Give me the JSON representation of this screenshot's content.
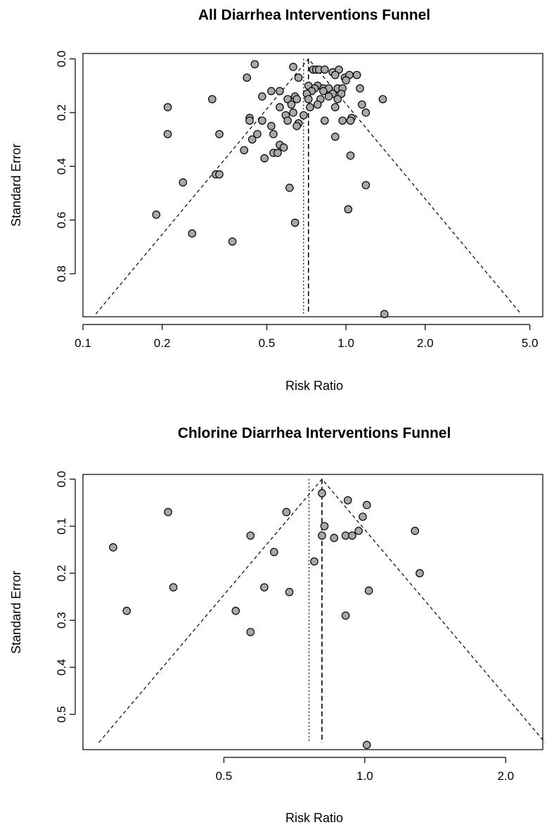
{
  "chart_data": [
    {
      "type": "scatter",
      "title": "All Diarrhea Interventions Funnel",
      "xlabel": "Risk Ratio",
      "ylabel": "Standard Error",
      "xscale": "log",
      "xlim": [
        0.1,
        5.6
      ],
      "ylim": [
        0.96,
        -0.02
      ],
      "xticks": [
        0.1,
        0.2,
        0.5,
        1.0,
        2.0,
        5.0
      ],
      "xtick_labels": [
        "0.1",
        "0.2",
        "0.5",
        "1.0",
        "2.0",
        "5.0"
      ],
      "yticks": [
        0.0,
        0.2,
        0.4,
        0.6,
        0.8
      ],
      "ytick_labels": [
        "0.0",
        "0.2",
        "0.4",
        "0.6",
        "0.8"
      ],
      "pooled_estimate": 0.72,
      "reference_line": 0.69,
      "funnel_se_max": 0.95,
      "grid": false,
      "legend": "none",
      "points": [
        {
          "x": 0.45,
          "y": 0.02
        },
        {
          "x": 0.63,
          "y": 0.03
        },
        {
          "x": 0.75,
          "y": 0.04
        },
        {
          "x": 0.77,
          "y": 0.04
        },
        {
          "x": 0.79,
          "y": 0.04
        },
        {
          "x": 0.83,
          "y": 0.04
        },
        {
          "x": 0.89,
          "y": 0.05
        },
        {
          "x": 0.94,
          "y": 0.04
        },
        {
          "x": 0.91,
          "y": 0.06
        },
        {
          "x": 0.99,
          "y": 0.07
        },
        {
          "x": 1.03,
          "y": 0.06
        },
        {
          "x": 1.1,
          "y": 0.06
        },
        {
          "x": 0.42,
          "y": 0.07
        },
        {
          "x": 0.66,
          "y": 0.07
        },
        {
          "x": 1.0,
          "y": 0.08
        },
        {
          "x": 0.72,
          "y": 0.1
        },
        {
          "x": 0.78,
          "y": 0.1
        },
        {
          "x": 0.76,
          "y": 0.11
        },
        {
          "x": 0.82,
          "y": 0.11
        },
        {
          "x": 0.86,
          "y": 0.11
        },
        {
          "x": 0.93,
          "y": 0.11
        },
        {
          "x": 0.97,
          "y": 0.11
        },
        {
          "x": 1.13,
          "y": 0.11
        },
        {
          "x": 0.52,
          "y": 0.12
        },
        {
          "x": 0.56,
          "y": 0.12
        },
        {
          "x": 0.74,
          "y": 0.12
        },
        {
          "x": 0.82,
          "y": 0.12
        },
        {
          "x": 0.71,
          "y": 0.13
        },
        {
          "x": 0.89,
          "y": 0.13
        },
        {
          "x": 0.96,
          "y": 0.13
        },
        {
          "x": 0.64,
          "y": 0.14
        },
        {
          "x": 0.48,
          "y": 0.14
        },
        {
          "x": 0.86,
          "y": 0.14
        },
        {
          "x": 0.31,
          "y": 0.15
        },
        {
          "x": 0.6,
          "y": 0.15
        },
        {
          "x": 0.65,
          "y": 0.15
        },
        {
          "x": 0.72,
          "y": 0.15
        },
        {
          "x": 0.8,
          "y": 0.15
        },
        {
          "x": 0.93,
          "y": 0.15
        },
        {
          "x": 1.38,
          "y": 0.15
        },
        {
          "x": 0.62,
          "y": 0.17
        },
        {
          "x": 0.78,
          "y": 0.17
        },
        {
          "x": 0.21,
          "y": 0.18
        },
        {
          "x": 0.56,
          "y": 0.18
        },
        {
          "x": 0.73,
          "y": 0.18
        },
        {
          "x": 0.91,
          "y": 0.18
        },
        {
          "x": 1.15,
          "y": 0.17
        },
        {
          "x": 1.19,
          "y": 0.2
        },
        {
          "x": 0.63,
          "y": 0.2
        },
        {
          "x": 0.59,
          "y": 0.21
        },
        {
          "x": 0.69,
          "y": 0.21
        },
        {
          "x": 0.43,
          "y": 0.22
        },
        {
          "x": 1.05,
          "y": 0.22
        },
        {
          "x": 0.43,
          "y": 0.23
        },
        {
          "x": 0.48,
          "y": 0.23
        },
        {
          "x": 0.6,
          "y": 0.23
        },
        {
          "x": 0.83,
          "y": 0.23
        },
        {
          "x": 0.97,
          "y": 0.23
        },
        {
          "x": 1.04,
          "y": 0.23
        },
        {
          "x": 0.66,
          "y": 0.24
        },
        {
          "x": 0.52,
          "y": 0.25
        },
        {
          "x": 0.65,
          "y": 0.25
        },
        {
          "x": 0.21,
          "y": 0.28
        },
        {
          "x": 0.33,
          "y": 0.28
        },
        {
          "x": 0.46,
          "y": 0.28
        },
        {
          "x": 0.53,
          "y": 0.28
        },
        {
          "x": 0.44,
          "y": 0.3
        },
        {
          "x": 0.91,
          "y": 0.29
        },
        {
          "x": 0.56,
          "y": 0.32
        },
        {
          "x": 0.58,
          "y": 0.33
        },
        {
          "x": 0.41,
          "y": 0.34
        },
        {
          "x": 0.53,
          "y": 0.35
        },
        {
          "x": 0.55,
          "y": 0.35
        },
        {
          "x": 0.49,
          "y": 0.37
        },
        {
          "x": 1.04,
          "y": 0.36
        },
        {
          "x": 0.32,
          "y": 0.43
        },
        {
          "x": 0.33,
          "y": 0.43
        },
        {
          "x": 0.24,
          "y": 0.46
        },
        {
          "x": 0.61,
          "y": 0.48
        },
        {
          "x": 1.19,
          "y": 0.47
        },
        {
          "x": 1.02,
          "y": 0.56
        },
        {
          "x": 0.19,
          "y": 0.58
        },
        {
          "x": 0.64,
          "y": 0.61
        },
        {
          "x": 0.26,
          "y": 0.65
        },
        {
          "x": 0.37,
          "y": 0.68
        },
        {
          "x": 1.4,
          "y": 0.95
        }
      ]
    },
    {
      "type": "scatter",
      "title": "Chlorine Diarrhea Interventions Funnel",
      "xlabel": "Risk Ratio",
      "ylabel": "Standard Error",
      "xscale": "log",
      "xlim": [
        0.25,
        2.4
      ],
      "ylim": [
        0.575,
        -0.01
      ],
      "xticks": [
        0.5,
        1.0,
        2.0
      ],
      "xtick_labels": [
        "0.5",
        "1.0",
        "2.0"
      ],
      "yticks": [
        0.0,
        0.1,
        0.2,
        0.3,
        0.4,
        0.5
      ],
      "ytick_labels": [
        "0.0",
        "0.1",
        "0.2",
        "0.3",
        "0.4",
        "0.5"
      ],
      "pooled_estimate": 0.81,
      "reference_line": 0.76,
      "funnel_se_max": 0.56,
      "grid": false,
      "legend": "none",
      "points": [
        {
          "x": 0.81,
          "y": 0.03
        },
        {
          "x": 0.92,
          "y": 0.045
        },
        {
          "x": 1.01,
          "y": 0.055
        },
        {
          "x": 0.38,
          "y": 0.07
        },
        {
          "x": 0.68,
          "y": 0.07
        },
        {
          "x": 0.99,
          "y": 0.08
        },
        {
          "x": 0.82,
          "y": 0.1
        },
        {
          "x": 0.97,
          "y": 0.11
        },
        {
          "x": 1.28,
          "y": 0.11
        },
        {
          "x": 0.57,
          "y": 0.12
        },
        {
          "x": 0.81,
          "y": 0.12
        },
        {
          "x": 0.91,
          "y": 0.12
        },
        {
          "x": 0.94,
          "y": 0.12
        },
        {
          "x": 0.86,
          "y": 0.125
        },
        {
          "x": 0.29,
          "y": 0.145
        },
        {
          "x": 0.64,
          "y": 0.155
        },
        {
          "x": 0.78,
          "y": 0.175
        },
        {
          "x": 1.31,
          "y": 0.2
        },
        {
          "x": 0.39,
          "y": 0.23
        },
        {
          "x": 0.61,
          "y": 0.23
        },
        {
          "x": 0.69,
          "y": 0.24
        },
        {
          "x": 1.02,
          "y": 0.237
        },
        {
          "x": 0.31,
          "y": 0.28
        },
        {
          "x": 0.53,
          "y": 0.28
        },
        {
          "x": 0.91,
          "y": 0.29
        },
        {
          "x": 0.57,
          "y": 0.325
        },
        {
          "x": 1.01,
          "y": 0.565
        }
      ]
    }
  ]
}
